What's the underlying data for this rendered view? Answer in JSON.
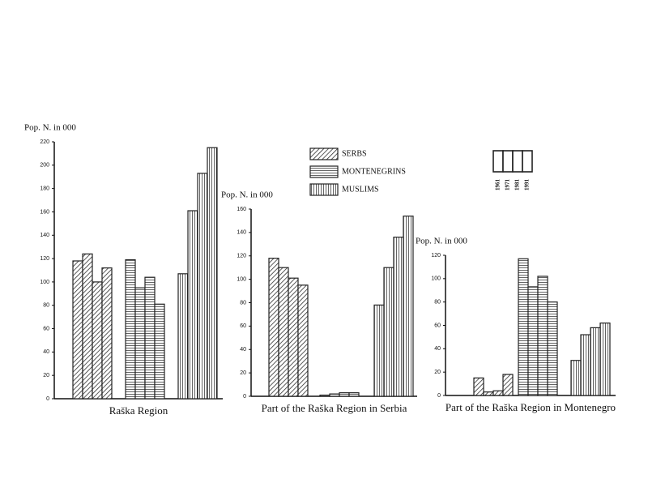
{
  "legend": {
    "series_names": [
      "SERBS",
      "MONTENEGRINS",
      "MUSLIMS"
    ],
    "years": [
      "1961",
      "1971",
      "1981",
      "1991"
    ]
  },
  "chart_data": [
    {
      "type": "bar",
      "xlabel": "Raška Region",
      "ylabel": "Pop. N. in 000",
      "ylim": [
        0,
        220
      ],
      "yticks": [
        0,
        20,
        40,
        60,
        80,
        100,
        120,
        140,
        160,
        180,
        200,
        220
      ],
      "color": "#222",
      "series": [
        {
          "values": [
            118,
            124,
            100,
            112
          ]
        },
        {
          "values": [
            119,
            95,
            104,
            81
          ]
        },
        {
          "values": [
            107,
            161,
            193,
            215
          ]
        }
      ]
    },
    {
      "type": "bar",
      "xlabel": "Part of the Raška Region in Serbia",
      "ylabel": "Pop. N. in 000",
      "ylim": [
        0,
        160
      ],
      "yticks": [
        0,
        20,
        40,
        60,
        80,
        100,
        120,
        140,
        160
      ],
      "color": "#222",
      "series": [
        {
          "values": [
            118,
            110,
            101,
            95
          ]
        },
        {
          "values": [
            1,
            2,
            3,
            3
          ]
        },
        {
          "values": [
            78,
            110,
            136,
            154
          ]
        }
      ]
    },
    {
      "type": "bar",
      "xlabel": "Part of the Raška Region in Montenegro",
      "ylabel": "Pop. N. in 000",
      "ylim": [
        0,
        120
      ],
      "yticks": [
        0,
        20,
        40,
        60,
        80,
        100,
        120
      ],
      "color": "#222",
      "series": [
        {
          "values": [
            15,
            3,
            4,
            18
          ]
        },
        {
          "values": [
            117,
            93,
            102,
            80
          ]
        },
        {
          "values": [
            30,
            52,
            58,
            62
          ]
        }
      ]
    }
  ]
}
